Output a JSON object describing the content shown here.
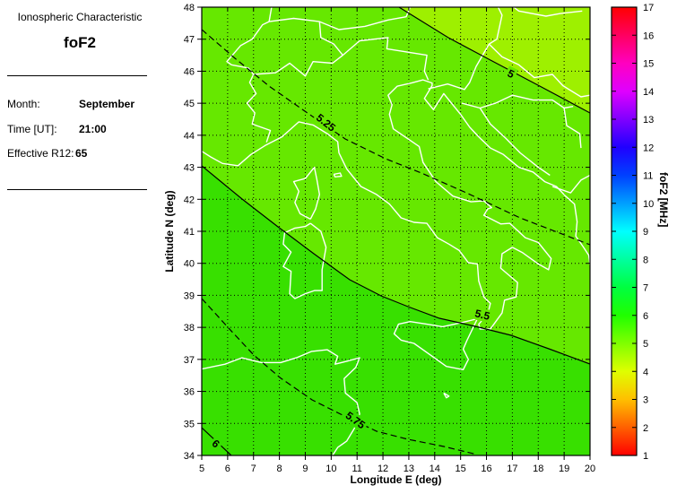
{
  "panel": {
    "title": "Ionospheric Characteristic",
    "characteristic": "foF2",
    "fields": [
      {
        "label": "Month:",
        "value": "September"
      },
      {
        "label": "Time [UT]:",
        "value": "21:00"
      },
      {
        "label": "Effective R12:",
        "value": "65"
      }
    ]
  },
  "chart_data": {
    "type": "heatmap",
    "subtype": "filled_contour_map",
    "region": "Central Mediterranean / Italy",
    "xlabel": "Longitude E (deg)",
    "ylabel": "Latitude N (deg)",
    "xlim": [
      5,
      20
    ],
    "ylim": [
      34,
      48
    ],
    "xticks": [
      5,
      6,
      7,
      8,
      9,
      10,
      11,
      12,
      13,
      14,
      15,
      16,
      17,
      18,
      19,
      20
    ],
    "yticks": [
      34,
      35,
      36,
      37,
      38,
      39,
      40,
      41,
      42,
      43,
      44,
      45,
      46,
      47,
      48
    ],
    "grid": "dotted",
    "coastline_color": "#FFFFFF",
    "contour_unit": "MHz",
    "contours": [
      {
        "level": 5,
        "style": "solid",
        "label": "5"
      },
      {
        "level": 5.25,
        "style": "dashed",
        "label": "5.25"
      },
      {
        "level": 5.5,
        "style": "solid",
        "label": "5.5"
      },
      {
        "level": 5.75,
        "style": "dashed",
        "label": "5.75"
      },
      {
        "level": 6,
        "style": "solid",
        "label": "6"
      }
    ],
    "fill_bands": [
      {
        "range": "< 5 MHz",
        "color": "#9EF000"
      },
      {
        "range": "5-5.5 MHz",
        "color": "#66E800"
      },
      {
        "range": "> 5.5 MHz",
        "color": "#38E000"
      }
    ],
    "colorbar": {
      "label": "foF2 [MHz]",
      "min": 1,
      "max": 17,
      "ticks": [
        1,
        2,
        3,
        4,
        5,
        6,
        7,
        8,
        9,
        10,
        11,
        12,
        13,
        14,
        15,
        16,
        17
      ],
      "stops": [
        {
          "v": 1,
          "color": "#FF0000"
        },
        {
          "v": 2,
          "color": "#FF6000"
        },
        {
          "v": 3,
          "color": "#FFBF00"
        },
        {
          "v": 4,
          "color": "#DFFF00"
        },
        {
          "v": 5,
          "color": "#80FF00"
        },
        {
          "v": 6,
          "color": "#20FF00"
        },
        {
          "v": 7,
          "color": "#00FF40"
        },
        {
          "v": 8,
          "color": "#00FF9F"
        },
        {
          "v": 9,
          "color": "#00FFFF"
        },
        {
          "v": 10,
          "color": "#009FFF"
        },
        {
          "v": 11,
          "color": "#0040FF"
        },
        {
          "v": 12,
          "color": "#2000FF"
        },
        {
          "v": 13,
          "color": "#8000FF"
        },
        {
          "v": 14,
          "color": "#DF00FF"
        },
        {
          "v": 15,
          "color": "#FF00BF"
        },
        {
          "v": 16,
          "color": "#FF0060"
        },
        {
          "v": 17,
          "color": "#FF0000"
        }
      ]
    }
  }
}
